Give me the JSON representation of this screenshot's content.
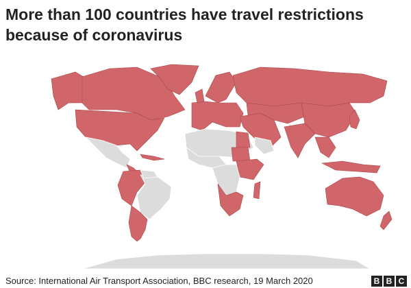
{
  "title": "More than 100 countries have travel restrictions because of coronavirus",
  "source": "Source: International Air Transport Association, BBC research, 19 March 2020",
  "logo": [
    "B",
    "B",
    "C"
  ]
}
